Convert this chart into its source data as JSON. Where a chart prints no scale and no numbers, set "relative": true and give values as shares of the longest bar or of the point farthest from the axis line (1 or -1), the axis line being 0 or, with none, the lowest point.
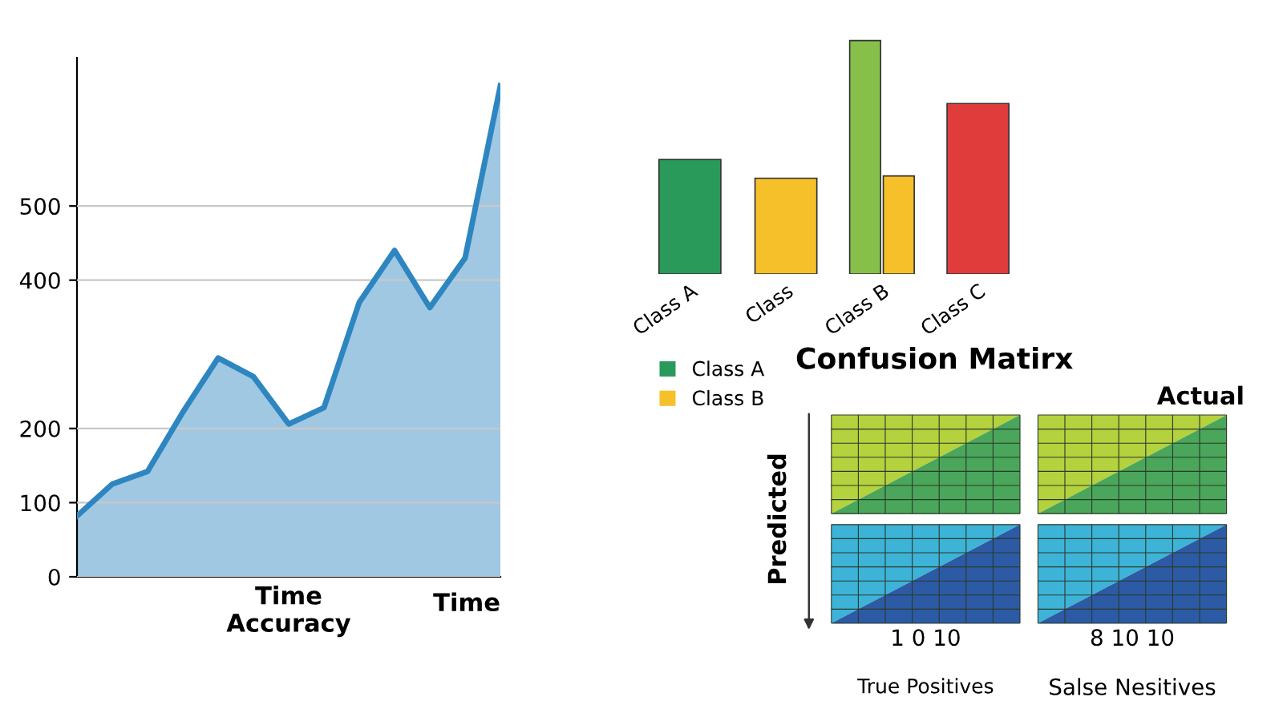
{
  "chart_data": [
    {
      "type": "area",
      "categories": [
        null,
        null,
        null,
        null,
        null,
        null,
        null,
        null,
        null,
        null,
        null,
        null,
        null
      ],
      "series": [
        {
          "color": "#2e86c1",
          "values": [
            82,
            125,
            142,
            222,
            295,
            270,
            206,
            228,
            370,
            440,
            363,
            430,
            662
          ]
        }
      ],
      "ylim": [
        0,
        700
      ],
      "yticks": [
        0,
        100,
        200,
        400,
        500
      ],
      "grid": "y",
      "tick_labels": "y",
      "xlabel": "Time\nAccuracy",
      "annotations": [
        "Time"
      ]
    },
    {
      "type": "bar",
      "categories": [
        "Class A",
        "Class",
        "Class B",
        "Class C"
      ],
      "series": [
        {
          "name": "Class A",
          "color": "#2a9a5a",
          "values": [
            0.49,
            null,
            null,
            null
          ]
        },
        {
          "color": "#86c04a",
          "values": [
            null,
            null,
            1,
            null
          ]
        },
        {
          "name": "Class B",
          "color": "#f6c02a",
          "values": [
            null,
            0.41,
            0.42,
            null
          ]
        },
        {
          "color": "#e03c3c",
          "values": [
            null,
            null,
            null,
            0.73
          ]
        }
      ],
      "relative": true,
      "legend": "bottom left",
      "tick_labels": "x"
    },
    {
      "type": "other",
      "title": "Confusion Matirx",
      "xlabel": "True Positives",
      "ylabel": "Predicted",
      "annotations": [
        "Actual",
        "Salse Nesitives",
        "1 0 10",
        "8 10 10"
      ]
    }
  ]
}
